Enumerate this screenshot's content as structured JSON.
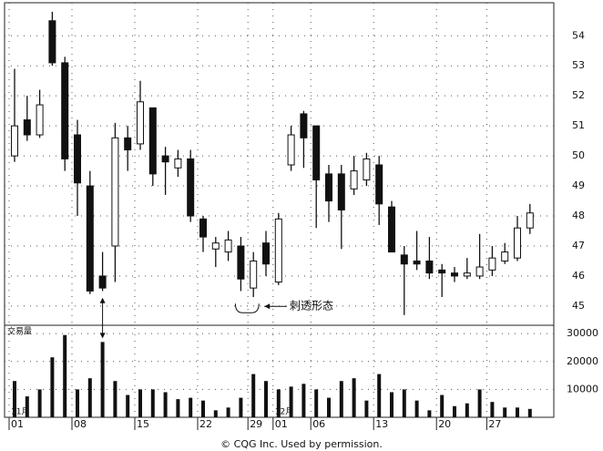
{
  "chart_data": {
    "type": "candlestick",
    "categories": [
      "01",
      null,
      null,
      null,
      null,
      "08",
      null,
      null,
      null,
      null,
      "15",
      null,
      null,
      null,
      null,
      "22",
      null,
      null,
      null,
      "29",
      null,
      "01",
      null,
      null,
      "06",
      null,
      null,
      null,
      null,
      "13",
      null,
      null,
      null,
      null,
      "20",
      null,
      null,
      null,
      "27",
      null,
      null,
      null
    ],
    "open": [
      50.0,
      51.2,
      50.7,
      54.5,
      53.1,
      50.7,
      49.0,
      46.0,
      47.0,
      50.6,
      50.4,
      51.6,
      50.0,
      49.6,
      49.9,
      47.9,
      46.9,
      46.8,
      47.0,
      45.6,
      47.1,
      45.8,
      49.7,
      51.4,
      51.0,
      49.4,
      49.4,
      48.9,
      49.2,
      49.7,
      48.3,
      46.7,
      46.5,
      46.5,
      46.2,
      46.1,
      46.0,
      46.0,
      46.2,
      46.5,
      46.6,
      47.6
    ],
    "high": [
      52.9,
      52.0,
      52.2,
      54.8,
      53.3,
      51.2,
      49.5,
      46.8,
      51.1,
      51.0,
      52.5,
      51.6,
      50.3,
      50.2,
      50.2,
      48.0,
      47.3,
      47.5,
      47.3,
      46.8,
      47.5,
      48.1,
      51.0,
      51.5,
      51.0,
      49.7,
      49.7,
      50.0,
      50.1,
      50.0,
      48.5,
      47.0,
      47.5,
      47.3,
      46.4,
      46.3,
      46.6,
      47.4,
      47.0,
      47.1,
      48.0,
      48.4
    ],
    "low": [
      49.8,
      50.5,
      50.6,
      53.0,
      49.5,
      48.0,
      45.4,
      45.5,
      45.8,
      49.5,
      50.2,
      49.0,
      48.7,
      49.3,
      47.8,
      46.8,
      46.3,
      46.5,
      45.5,
      45.3,
      46.0,
      45.7,
      49.5,
      49.6,
      47.6,
      47.8,
      46.9,
      48.7,
      49.0,
      47.7,
      46.8,
      44.7,
      46.2,
      45.9,
      45.3,
      45.8,
      45.9,
      45.9,
      46.0,
      46.4,
      46.5,
      47.4
    ],
    "close": [
      51.0,
      50.7,
      51.7,
      53.1,
      49.9,
      49.1,
      45.5,
      45.6,
      50.6,
      50.2,
      51.8,
      49.4,
      49.8,
      49.9,
      48.0,
      47.3,
      47.1,
      47.2,
      45.9,
      46.5,
      46.4,
      47.9,
      50.7,
      50.6,
      49.2,
      48.5,
      48.2,
      49.5,
      49.9,
      48.4,
      46.8,
      46.4,
      46.4,
      46.1,
      46.1,
      46.0,
      46.1,
      46.3,
      46.6,
      46.8,
      47.6,
      48.1
    ],
    "ylim": [
      44.36,
      55.1
    ],
    "yticks": [
      45,
      46,
      47,
      48,
      49,
      50,
      51,
      52,
      53,
      54
    ],
    "grid": true,
    "month_labels": [
      "11月",
      "12月"
    ],
    "annotation": "刺透形态",
    "volume": {
      "label": "交易量",
      "values": [
        13000,
        7500,
        10000,
        21500,
        29500,
        10000,
        14000,
        27000,
        13000,
        8000,
        10000,
        10000,
        9000,
        6500,
        7000,
        6000,
        2500,
        3500,
        7000,
        15500,
        13000,
        10000,
        11000,
        12000,
        10000,
        7000,
        13000,
        14000,
        6000,
        15500,
        9000,
        10000,
        6000,
        2500,
        8000,
        4000,
        5000,
        10000,
        5500,
        3500,
        3500,
        3000
      ],
      "ylim": [
        0,
        33000
      ],
      "yticks": [
        10000,
        20000,
        30000
      ]
    },
    "footer": "© CQG Inc. Used by permission."
  }
}
